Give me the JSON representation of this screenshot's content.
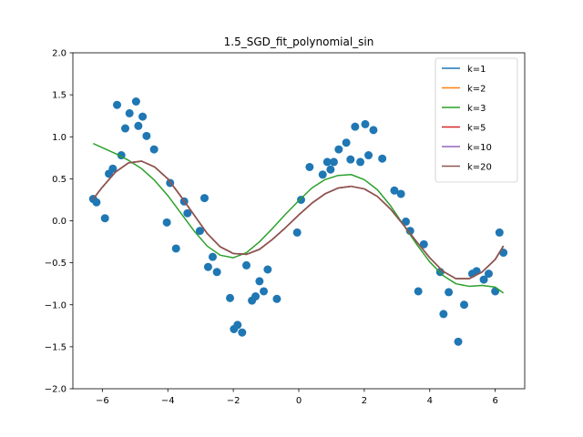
{
  "chart_data": {
    "type": "line",
    "title": "1.5_SGD_fit_polynomial_sin",
    "xlabel": "",
    "ylabel": "",
    "xlim": [
      -6.9,
      6.9
    ],
    "ylim": [
      -2.0,
      2.0
    ],
    "xticks": [
      -6,
      -4,
      -2,
      0,
      2,
      4,
      6
    ],
    "yticks": [
      -2.0,
      -1.5,
      -1.0,
      -0.5,
      0.0,
      0.5,
      1.0,
      1.5,
      2.0
    ],
    "xtick_labels": [
      "−6",
      "−4",
      "−2",
      "0",
      "2",
      "4",
      "6"
    ],
    "ytick_labels": [
      "−2.0",
      "−1.5",
      "−1.0",
      "−0.5",
      "0.0",
      "0.5",
      "1.0",
      "1.5",
      "2.0"
    ],
    "grid": false,
    "legend_position": "top-right",
    "scatter": {
      "color": "#1f77b4",
      "points": [
        [
          -6.28,
          0.26
        ],
        [
          -6.18,
          0.22
        ],
        [
          -5.92,
          0.03
        ],
        [
          -5.8,
          0.56
        ],
        [
          -5.68,
          0.62
        ],
        [
          -5.55,
          1.38
        ],
        [
          -5.42,
          0.78
        ],
        [
          -5.3,
          1.1
        ],
        [
          -5.17,
          1.28
        ],
        [
          -4.97,
          1.42
        ],
        [
          -4.9,
          1.13
        ],
        [
          -4.77,
          1.24
        ],
        [
          -4.65,
          1.01
        ],
        [
          -4.42,
          0.85
        ],
        [
          -4.03,
          -0.02
        ],
        [
          -3.93,
          0.45
        ],
        [
          -3.75,
          -0.33
        ],
        [
          -3.5,
          0.23
        ],
        [
          -3.4,
          0.09
        ],
        [
          -3.02,
          -0.12
        ],
        [
          -2.88,
          0.27
        ],
        [
          -2.77,
          -0.55
        ],
        [
          -2.63,
          -0.43
        ],
        [
          -2.5,
          -0.61
        ],
        [
          -2.1,
          -0.92
        ],
        [
          -1.98,
          -1.29
        ],
        [
          -1.87,
          -1.24
        ],
        [
          -1.73,
          -1.33
        ],
        [
          -1.6,
          -0.53
        ],
        [
          -1.43,
          -0.95
        ],
        [
          -1.32,
          -0.9
        ],
        [
          -1.2,
          -0.72
        ],
        [
          -1.07,
          -0.84
        ],
        [
          -0.95,
          -0.58
        ],
        [
          -0.67,
          -0.93
        ],
        [
          -0.05,
          -0.14
        ],
        [
          0.07,
          0.25
        ],
        [
          0.33,
          0.64
        ],
        [
          0.73,
          0.55
        ],
        [
          0.87,
          0.7
        ],
        [
          0.97,
          0.61
        ],
        [
          1.07,
          0.7
        ],
        [
          1.22,
          0.85
        ],
        [
          1.45,
          0.93
        ],
        [
          1.58,
          0.73
        ],
        [
          1.72,
          1.12
        ],
        [
          1.88,
          0.7
        ],
        [
          2.03,
          1.15
        ],
        [
          2.13,
          0.78
        ],
        [
          2.28,
          1.08
        ],
        [
          2.55,
          0.74
        ],
        [
          2.92,
          0.36
        ],
        [
          3.12,
          0.32
        ],
        [
          3.27,
          -0.01
        ],
        [
          3.4,
          -0.12
        ],
        [
          3.65,
          -0.84
        ],
        [
          3.82,
          -0.28
        ],
        [
          4.32,
          -0.61
        ],
        [
          4.42,
          -1.11
        ],
        [
          4.58,
          -0.85
        ],
        [
          4.87,
          -1.44
        ],
        [
          5.05,
          -1.0
        ],
        [
          5.3,
          -0.63
        ],
        [
          5.43,
          -0.6
        ],
        [
          5.65,
          -0.7
        ],
        [
          5.8,
          -0.63
        ],
        [
          6.0,
          -0.84
        ],
        [
          6.13,
          -0.14
        ],
        [
          6.25,
          -0.38
        ]
      ]
    },
    "series": [
      {
        "name": "k=1",
        "color": "#1f77b4",
        "func": "s2"
      },
      {
        "name": "k=2",
        "color": "#ff7f0e",
        "func": "s2"
      },
      {
        "name": "k=3",
        "color": "#2ca02c",
        "func": "s3"
      },
      {
        "name": "k=5",
        "color": "#d62728",
        "func": "s2"
      },
      {
        "name": "k=10",
        "color": "#9467bd",
        "func": "s2"
      },
      {
        "name": "k=20",
        "color": "#8c564b",
        "func": "s2"
      }
    ],
    "curve_points": {
      "s2": [
        [
          -6.28,
          0.26
        ],
        [
          -6.0,
          0.4
        ],
        [
          -5.6,
          0.58
        ],
        [
          -5.2,
          0.69
        ],
        [
          -4.8,
          0.71
        ],
        [
          -4.4,
          0.64
        ],
        [
          -4.0,
          0.5
        ],
        [
          -3.6,
          0.29
        ],
        [
          -3.2,
          0.07
        ],
        [
          -2.8,
          -0.15
        ],
        [
          -2.4,
          -0.31
        ],
        [
          -2.0,
          -0.39
        ],
        [
          -1.6,
          -0.4
        ],
        [
          -1.2,
          -0.34
        ],
        [
          -0.8,
          -0.22
        ],
        [
          -0.4,
          -0.08
        ],
        [
          0.0,
          0.07
        ],
        [
          0.4,
          0.21
        ],
        [
          0.8,
          0.32
        ],
        [
          1.2,
          0.39
        ],
        [
          1.6,
          0.41
        ],
        [
          2.0,
          0.38
        ],
        [
          2.4,
          0.29
        ],
        [
          2.8,
          0.14
        ],
        [
          3.2,
          -0.05
        ],
        [
          3.6,
          -0.25
        ],
        [
          4.0,
          -0.44
        ],
        [
          4.4,
          -0.6
        ],
        [
          4.8,
          -0.69
        ],
        [
          5.2,
          -0.69
        ],
        [
          5.6,
          -0.61
        ],
        [
          6.0,
          -0.46
        ],
        [
          6.25,
          -0.3
        ]
      ],
      "s3": [
        [
          -6.28,
          0.92
        ],
        [
          -6.0,
          0.87
        ],
        [
          -5.6,
          0.8
        ],
        [
          -5.2,
          0.72
        ],
        [
          -4.8,
          0.62
        ],
        [
          -4.4,
          0.48
        ],
        [
          -4.0,
          0.3
        ],
        [
          -3.6,
          0.09
        ],
        [
          -3.2,
          -0.12
        ],
        [
          -2.8,
          -0.3
        ],
        [
          -2.4,
          -0.41
        ],
        [
          -2.0,
          -0.44
        ],
        [
          -1.6,
          -0.38
        ],
        [
          -1.2,
          -0.25
        ],
        [
          -0.8,
          -0.09
        ],
        [
          -0.4,
          0.08
        ],
        [
          0.0,
          0.24
        ],
        [
          0.4,
          0.39
        ],
        [
          0.8,
          0.49
        ],
        [
          1.2,
          0.54
        ],
        [
          1.6,
          0.55
        ],
        [
          2.0,
          0.49
        ],
        [
          2.4,
          0.37
        ],
        [
          2.8,
          0.18
        ],
        [
          3.2,
          -0.05
        ],
        [
          3.6,
          -0.28
        ],
        [
          4.0,
          -0.49
        ],
        [
          4.4,
          -0.65
        ],
        [
          4.8,
          -0.75
        ],
        [
          5.2,
          -0.78
        ],
        [
          5.6,
          -0.77
        ],
        [
          6.0,
          -0.79
        ],
        [
          6.25,
          -0.86
        ]
      ]
    }
  }
}
